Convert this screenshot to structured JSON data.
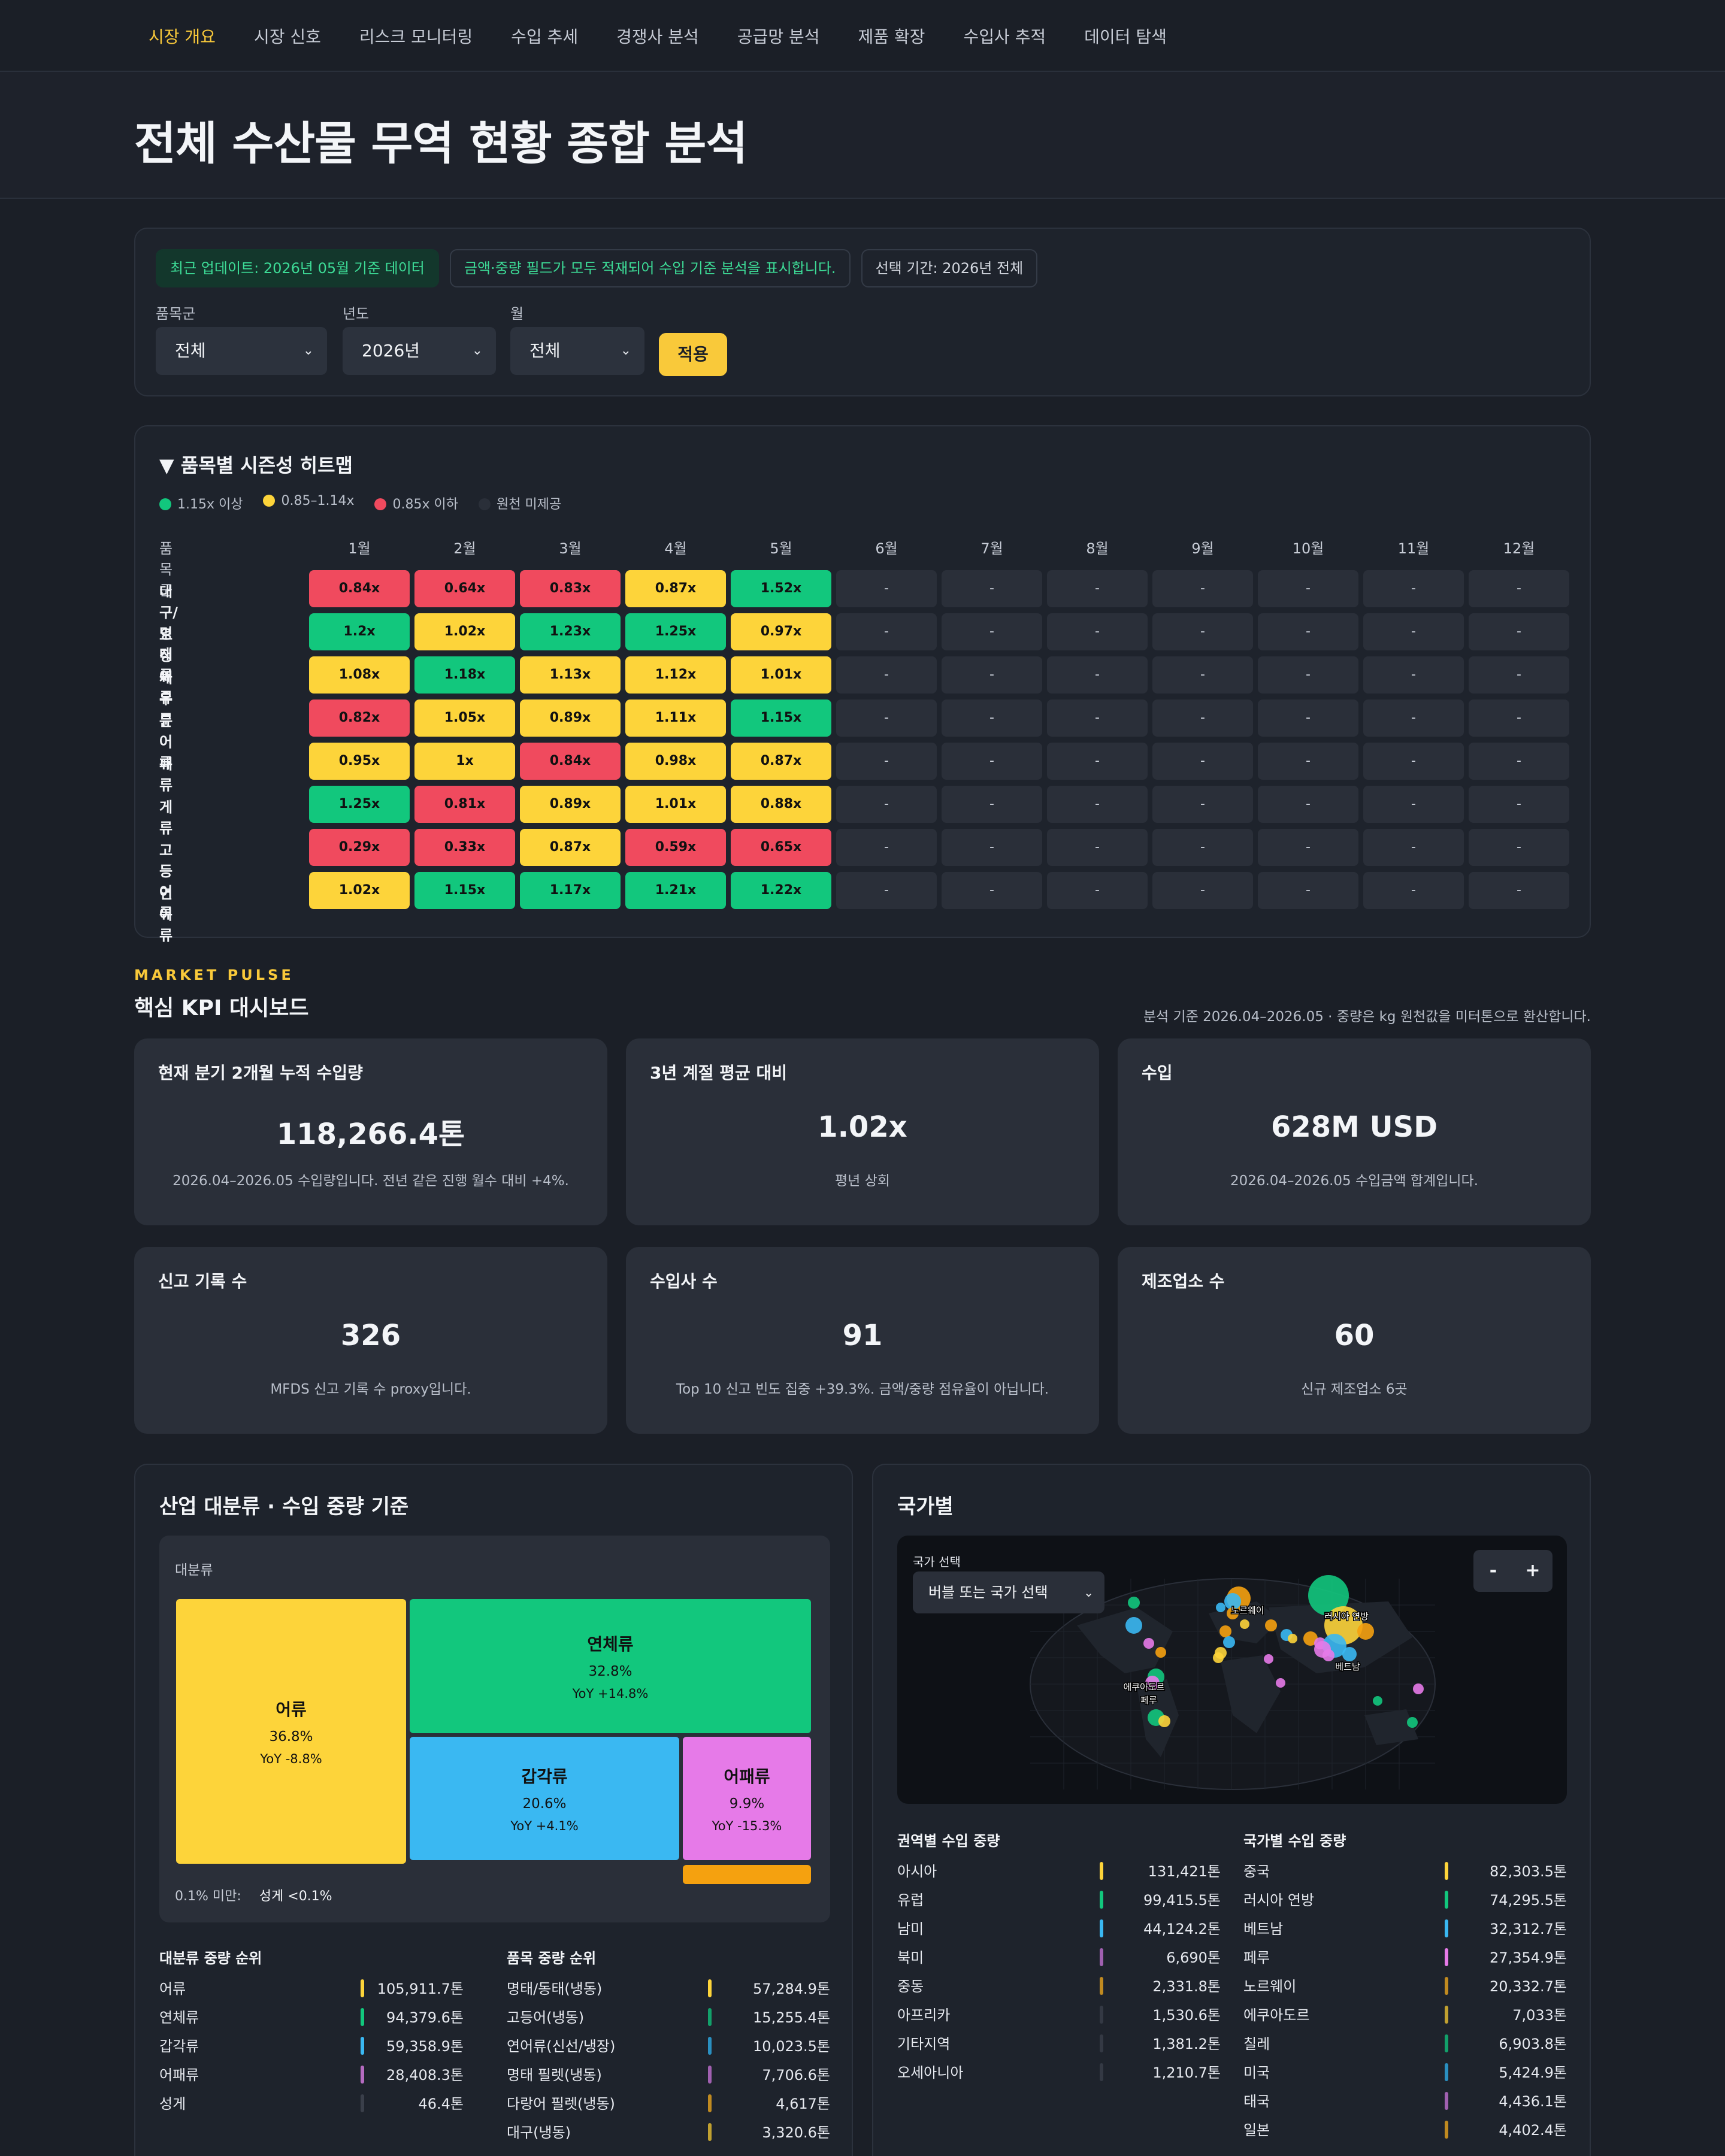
{
  "nav": {
    "items": [
      "시장 개요",
      "시장 신호",
      "리스크 모니터링",
      "수입 추세",
      "경쟁사 분석",
      "공급망 분석",
      "제품 확장",
      "수입사 추적",
      "데이터 탐색"
    ],
    "active_index": 0
  },
  "page_title": "전체 수산물 무역 현황 종합 분석",
  "filters": {
    "chips": [
      "최근 업데이트: 2026년 05월 기준 데이터",
      "금액·중량 필드가 모두 적재되어 수입 기준 분석을 표시합니다.",
      "선택 기간: 2026년 전체"
    ],
    "category_label": "품목군",
    "category_value": "전체",
    "year_label": "년도",
    "year_value": "2026년",
    "month_label": "월",
    "month_value": "전체",
    "apply_label": "적용"
  },
  "heatmap": {
    "title": "▼ 품목별 시즌성 히트맵",
    "legend": [
      {
        "label": "1.15x 이상",
        "color": "#12c77d"
      },
      {
        "label": "0.85–1.14x",
        "color": "#fdd43a"
      },
      {
        "label": "0.85x 이하",
        "color": "#f04a5e"
      },
      {
        "label": "원천 미제공",
        "color": "#2a2f39"
      }
    ],
    "row_header": "품목군",
    "months": [
      "1월",
      "2월",
      "3월",
      "4월",
      "5월",
      "6월",
      "7월",
      "8월",
      "9월",
      "10월",
      "11월",
      "12월"
    ],
    "rows": [
      {
        "name": "대구/명태류",
        "values": [
          "0.84x",
          "0.64x",
          "0.83x",
          "0.87x",
          "1.52x",
          "-",
          "-",
          "-",
          "-",
          "-",
          "-",
          "-"
        ],
        "levels": [
          "r",
          "r",
          "r",
          "y",
          "g",
          "n",
          "n",
          "n",
          "n",
          "n",
          "n",
          "n"
        ]
      },
      {
        "name": "오징어류",
        "values": [
          "1.2x",
          "1.02x",
          "1.23x",
          "1.25x",
          "0.97x",
          "-",
          "-",
          "-",
          "-",
          "-",
          "-",
          "-"
        ],
        "levels": [
          "g",
          "y",
          "g",
          "g",
          "y",
          "n",
          "n",
          "n",
          "n",
          "n",
          "n",
          "n"
        ]
      },
      {
        "name": "새우류",
        "values": [
          "1.08x",
          "1.18x",
          "1.13x",
          "1.12x",
          "1.01x",
          "-",
          "-",
          "-",
          "-",
          "-",
          "-",
          "-"
        ],
        "levels": [
          "y",
          "g",
          "y",
          "y",
          "y",
          "n",
          "n",
          "n",
          "n",
          "n",
          "n",
          "n"
        ]
      },
      {
        "name": "문어류",
        "values": [
          "0.82x",
          "1.05x",
          "0.89x",
          "1.11x",
          "1.15x",
          "-",
          "-",
          "-",
          "-",
          "-",
          "-",
          "-"
        ],
        "levels": [
          "r",
          "y",
          "y",
          "y",
          "g",
          "n",
          "n",
          "n",
          "n",
          "n",
          "n",
          "n"
        ]
      },
      {
        "name": "패류",
        "values": [
          "0.95x",
          "1x",
          "0.84x",
          "0.98x",
          "0.87x",
          "-",
          "-",
          "-",
          "-",
          "-",
          "-",
          "-"
        ],
        "levels": [
          "y",
          "y",
          "r",
          "y",
          "y",
          "n",
          "n",
          "n",
          "n",
          "n",
          "n",
          "n"
        ]
      },
      {
        "name": "게류",
        "values": [
          "1.25x",
          "0.81x",
          "0.89x",
          "1.01x",
          "0.88x",
          "-",
          "-",
          "-",
          "-",
          "-",
          "-",
          "-"
        ],
        "levels": [
          "g",
          "r",
          "y",
          "y",
          "y",
          "n",
          "n",
          "n",
          "n",
          "n",
          "n",
          "n"
        ]
      },
      {
        "name": "고등어류",
        "values": [
          "0.29x",
          "0.33x",
          "0.87x",
          "0.59x",
          "0.65x",
          "-",
          "-",
          "-",
          "-",
          "-",
          "-",
          "-"
        ],
        "levels": [
          "r",
          "r",
          "y",
          "r",
          "r",
          "n",
          "n",
          "n",
          "n",
          "n",
          "n",
          "n"
        ]
      },
      {
        "name": "연어류",
        "values": [
          "1.02x",
          "1.15x",
          "1.17x",
          "1.21x",
          "1.22x",
          "-",
          "-",
          "-",
          "-",
          "-",
          "-",
          "-"
        ],
        "levels": [
          "y",
          "g",
          "g",
          "g",
          "g",
          "n",
          "n",
          "n",
          "n",
          "n",
          "n",
          "n"
        ]
      }
    ]
  },
  "kpi_section": {
    "eyebrow": "MARKET PULSE",
    "title": "핵심 KPI 대시보드",
    "note": "분석 기준 2026.04–2026.05 · 중량은 kg 원천값을 미터톤으로 환산합니다.",
    "cards": [
      {
        "title": "현재 분기 2개월 누적 수입량",
        "value": "118,266.4톤",
        "desc": "2026.04–2026.05 수입량입니다. 전년 같은 진행 월수 대비 +4%."
      },
      {
        "title": "3년 계절 평균 대비",
        "value": "1.02x",
        "desc": "평년 상회"
      },
      {
        "title": "수입",
        "value": "628M USD",
        "desc": "2026.04–2026.05 수입금액 합계입니다."
      },
      {
        "title": "신고 기록 수",
        "value": "326",
        "desc": "MFDS 신고 기록 수 proxy입니다."
      },
      {
        "title": "수입사 수",
        "value": "91",
        "desc": "Top 10 신고 빈도 집중 +39.3%. 금액/중량 점유율이 아닙니다."
      },
      {
        "title": "제조업소 수",
        "value": "60",
        "desc": "신규 제조업소 6곳"
      }
    ]
  },
  "industry": {
    "title": "산업 대분류 · 수입 중량 기준",
    "treemap_label": "대분류",
    "cells": [
      {
        "name": "어류",
        "share": "36.8%",
        "yoy": "YoY -8.8%",
        "color": "#fdd43a"
      },
      {
        "name": "연체류",
        "share": "32.8%",
        "yoy": "YoY +14.8%",
        "color": "#12c77d"
      },
      {
        "name": "갑각류",
        "share": "20.6%",
        "yoy": "YoY +4.1%",
        "color": "#3ab8f2"
      },
      {
        "name": "어패류",
        "share": "9.9%",
        "yoy": "YoY -15.3%",
        "color": "#e67ae8"
      },
      {
        "name": "성게",
        "share": "",
        "yoy": "",
        "color": "#f5a10f"
      }
    ],
    "minor_label": "0.1% 미만:",
    "minor_value": "성게 <0.1%",
    "major_rank": {
      "title": "대분류 중량 순위",
      "rows": [
        {
          "name": "어류",
          "value": "105,911.7톤",
          "color": "#fdd43a"
        },
        {
          "name": "연체류",
          "value": "94,379.6톤",
          "color": "#12c77d"
        },
        {
          "name": "갑각류",
          "value": "59,358.9톤",
          "color": "#3ab8f2"
        },
        {
          "name": "어패류",
          "value": "28,408.3톤",
          "color": "#b56bc0"
        },
        {
          "name": "성게",
          "value": "46.4톤",
          "color": "#3a3f4a"
        }
      ]
    },
    "item_rank": {
      "title": "품목 중량 순위",
      "rows": [
        {
          "name": "명태/동태(냉동)",
          "value": "57,284.9톤",
          "color": "#fdd43a"
        },
        {
          "name": "고등어(냉동)",
          "value": "15,255.4톤",
          "color": "#12a06a"
        },
        {
          "name": "연어류(신선/냉장)",
          "value": "10,023.5톤",
          "color": "#2a8fc0"
        },
        {
          "name": "명태 필렛(냉동)",
          "value": "7,706.6톤",
          "color": "#a060b0"
        },
        {
          "name": "다랑어 필렛(냉동)",
          "value": "4,617톤",
          "color": "#c08a20"
        },
        {
          "name": "대구(냉동)",
          "value": "3,320.6톤",
          "color": "#c0a030"
        }
      ]
    }
  },
  "country": {
    "title": "국가별",
    "map_select_label": "국가 선택",
    "map_select_value": "버블 또는 국가 선택",
    "zoom_out": "-",
    "zoom_in": "+",
    "map_labels": [
      "노르웨이",
      "러시아 연방",
      "베트남",
      "에쿠아도르",
      "페루"
    ],
    "region_rank": {
      "title": "권역별 수입 중량",
      "rows": [
        {
          "name": "아시아",
          "value": "131,421톤",
          "color": "#fdd43a"
        },
        {
          "name": "유럽",
          "value": "99,415.5톤",
          "color": "#12c77d"
        },
        {
          "name": "남미",
          "value": "44,124.2톤",
          "color": "#3ab8f2"
        },
        {
          "name": "북미",
          "value": "6,690톤",
          "color": "#a060b0"
        },
        {
          "name": "중동",
          "value": "2,331.8톤",
          "color": "#c08a20"
        },
        {
          "name": "아프리카",
          "value": "1,530.6톤",
          "color": "#343944"
        },
        {
          "name": "기타지역",
          "value": "1,381.2톤",
          "color": "#343944"
        },
        {
          "name": "오세아니아",
          "value": "1,210.7톤",
          "color": "#343944"
        }
      ]
    },
    "country_rank": {
      "title": "국가별 수입 중량",
      "rows": [
        {
          "name": "중국",
          "value": "82,303.5톤",
          "color": "#fdd43a"
        },
        {
          "name": "러시아 연방",
          "value": "74,295.5톤",
          "color": "#12c77d"
        },
        {
          "name": "베트남",
          "value": "32,312.7톤",
          "color": "#3ab8f2"
        },
        {
          "name": "페루",
          "value": "27,354.9톤",
          "color": "#e67ae8"
        },
        {
          "name": "노르웨이",
          "value": "20,332.7톤",
          "color": "#c08a20"
        },
        {
          "name": "에쿠아도르",
          "value": "7,033톤",
          "color": "#c0a030"
        },
        {
          "name": "칠레",
          "value": "6,903.8톤",
          "color": "#12a06a"
        },
        {
          "name": "미국",
          "value": "5,424.9톤",
          "color": "#2a8fc0"
        },
        {
          "name": "태국",
          "value": "4,436.1톤",
          "color": "#a060b0"
        },
        {
          "name": "일본",
          "value": "4,402.4톤",
          "color": "#c08a20"
        }
      ]
    }
  }
}
